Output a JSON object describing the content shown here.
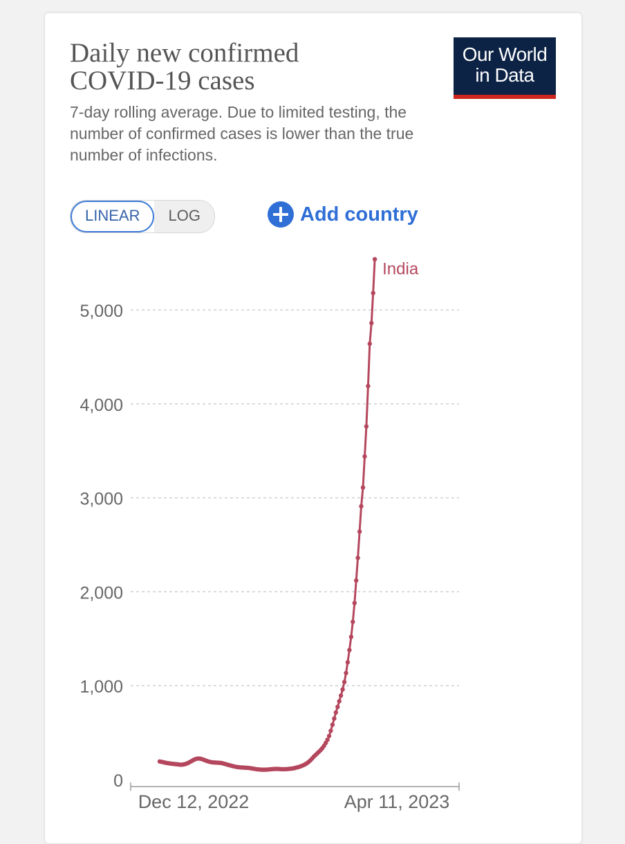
{
  "header": {
    "title_line1": "Daily new confirmed",
    "title_line2": "COVID-19 cases",
    "subtitle": "7-day rolling average. Due to limited testing, the number of confirmed cases is lower than the true number of infections.",
    "logo_line1": "Our World",
    "logo_line2": "in Data"
  },
  "controls": {
    "linear_label": "LINEAR",
    "log_label": "LOG",
    "add_country_label": "Add country"
  },
  "colors": {
    "series": "#b4475d",
    "accent": "#2f6fd6",
    "logo_bg": "#0c2345",
    "logo_bar": "#ce261e"
  },
  "chart_data": {
    "type": "line",
    "title": "Daily new confirmed COVID-19 cases",
    "subtitle": "7-day rolling average. Due to limited testing, the number of confirmed cases is lower than the true number of infections.",
    "xlabel": "",
    "ylabel": "",
    "x_start": "Nov 22, 2022",
    "x_ticks": [
      "Dec 12, 2022",
      "Apr 11, 2023"
    ],
    "x_range": [
      "Nov 22, 2022",
      "Apr 13, 2023"
    ],
    "y_ticks": [
      "0",
      "1,000",
      "2,000",
      "3,000",
      "4,000",
      "5,000"
    ],
    "ylim": [
      0,
      5600
    ],
    "grid": true,
    "scale": "linear",
    "series": [
      {
        "name": "India",
        "values": [
          194,
          190,
          186,
          182,
          178,
          175,
          172,
          170,
          168,
          166,
          164,
          162,
          160,
          160,
          162,
          166,
          172,
          180,
          190,
          200,
          210,
          218,
          223,
          225,
          223,
          218,
          212,
          205,
          198,
          192,
          188,
          185,
          183,
          182,
          181,
          180,
          178,
          175,
          170,
          165,
          160,
          155,
          150,
          145,
          141,
          137,
          134,
          132,
          130,
          129,
          128,
          127,
          126,
          124,
          121,
          118,
          115,
          112,
          110,
          108,
          107,
          106,
          106,
          107,
          108,
          110,
          112,
          113,
          114,
          114,
          114,
          113,
          112,
          112,
          112,
          113,
          114,
          116,
          118,
          121,
          125,
          130,
          135,
          141,
          148,
          156,
          165,
          176,
          190,
          207,
          225,
          245,
          263,
          280,
          297,
          315,
          335,
          360,
          390,
          425,
          465,
          520,
          585,
          650,
          715,
          775,
          835,
          895,
          960,
          1040,
          1135,
          1250,
          1380,
          1520,
          1680,
          1880,
          2120,
          2360,
          2640,
          2910,
          3110,
          3440,
          3760,
          4190,
          4640,
          4860,
          5180,
          5540
        ]
      }
    ]
  }
}
